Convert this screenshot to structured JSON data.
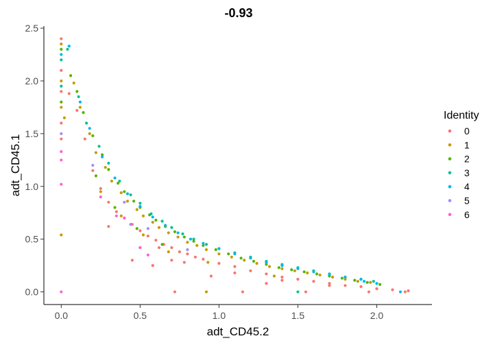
{
  "chart_data": {
    "type": "scatter",
    "title": "-0.93",
    "xlabel": "adt_CD45.2",
    "ylabel": "adt_CD45.1",
    "xlim": [
      -0.11,
      2.35
    ],
    "ylim": [
      -0.12,
      2.52
    ],
    "xticks": [
      0.0,
      0.5,
      1.0,
      1.5,
      2.0
    ],
    "xtick_labels": [
      "0.0",
      "0.5",
      "1.0",
      "1.5",
      "2.0"
    ],
    "yticks": [
      0.0,
      0.5,
      1.0,
      1.5,
      2.0,
      2.5
    ],
    "ytick_labels": [
      "0.0",
      "0.5",
      "1.0",
      "1.5",
      "2.0",
      "2.5"
    ],
    "grid": false,
    "legend": {
      "title": "Identity",
      "placement": "right",
      "entries": [
        {
          "label": "0",
          "color": "#F8766D"
        },
        {
          "label": "1",
          "color": "#C49A00"
        },
        {
          "label": "2",
          "color": "#53B400"
        },
        {
          "label": "3",
          "color": "#00C094"
        },
        {
          "label": "4",
          "color": "#00B6EB"
        },
        {
          "label": "5",
          "color": "#A58AFF"
        },
        {
          "label": "6",
          "color": "#FB61D7"
        }
      ]
    },
    "series": [
      {
        "name": "0",
        "x": [
          0,
          0,
          0,
          0,
          0,
          0.05,
          0.1,
          0.15,
          0.2,
          0.25,
          0.3,
          0.35,
          0.4,
          0.45,
          0.5,
          0.55,
          0.6,
          0.65,
          0.7,
          0.75,
          0.8,
          0.85,
          0.9,
          1.0,
          1.1,
          1.2,
          1.3,
          1.4,
          1.5,
          1.6,
          1.7,
          1.8,
          1.9,
          2.0,
          2.1,
          2.2,
          0.3,
          0.5,
          0.7,
          1.1,
          1.4,
          1.7,
          2.0,
          0.45,
          0.62,
          0.78,
          0.72,
          1.15,
          1.55,
          1.95,
          2.18,
          0.58,
          0.95,
          1.3
        ],
        "y": [
          2.4,
          2.1,
          1.9,
          1.6,
          1.45,
          1.88,
          1.72,
          1.45,
          1.15,
          0.98,
          0.85,
          0.76,
          0.7,
          0.64,
          0.58,
          0.53,
          0.49,
          0.45,
          0.42,
          0.38,
          0.36,
          0.33,
          0.31,
          0.27,
          0.24,
          0.2,
          0.17,
          0.14,
          0.12,
          0.1,
          0.08,
          0.06,
          0.05,
          0.03,
          0.02,
          0.01,
          0.62,
          0.42,
          0.3,
          0.18,
          0.11,
          0.06,
          0.03,
          0.3,
          0.42,
          0.28,
          0.0,
          0.0,
          0.0,
          0.0,
          0.0,
          0.25,
          0.15,
          0.08
        ]
      },
      {
        "name": "1",
        "x": [
          0,
          0,
          0,
          0.02,
          0.08,
          0.12,
          0.18,
          0.22,
          0.28,
          0.32,
          0.38,
          0.42,
          0.48,
          0.52,
          0.58,
          0.62,
          0.68,
          0.74,
          0.8,
          0.86,
          0.92,
          1.0,
          1.08,
          1.16,
          1.24,
          1.32,
          1.4,
          1.48,
          1.56,
          1.64,
          1.72,
          1.8,
          1.88,
          1.96,
          0.25,
          0.38,
          0.52,
          0.68,
          0.93,
          1.35,
          0.92,
          0.0
        ],
        "y": [
          2.35,
          2.0,
          1.75,
          1.65,
          1.98,
          1.75,
          1.5,
          1.32,
          1.18,
          1.05,
          0.94,
          0.86,
          0.78,
          0.72,
          0.66,
          0.61,
          0.56,
          0.52,
          0.47,
          0.44,
          0.4,
          0.36,
          0.33,
          0.3,
          0.27,
          0.24,
          0.22,
          0.2,
          0.18,
          0.16,
          0.14,
          0.12,
          0.1,
          0.09,
          0.95,
          0.72,
          0.54,
          0.38,
          0.28,
          0.15,
          0.0,
          0.54
        ]
      },
      {
        "name": "2",
        "x": [
          0,
          0,
          0.06,
          0.1,
          0.14,
          0.2,
          0.26,
          0.3,
          0.36,
          0.4,
          0.46,
          0.5,
          0.56,
          0.6,
          0.66,
          0.72,
          0.78,
          0.84,
          0.9,
          0.98,
          1.06,
          1.14,
          1.22,
          1.3,
          1.38,
          1.46,
          1.54,
          1.62,
          1.7,
          1.78,
          1.86,
          1.94,
          2.02,
          0.22,
          0.34,
          0.48,
          0.64
        ],
        "y": [
          2.3,
          1.8,
          2.05,
          1.9,
          1.7,
          1.48,
          1.3,
          1.16,
          1.03,
          0.95,
          0.86,
          0.8,
          0.73,
          0.68,
          0.62,
          0.57,
          0.52,
          0.48,
          0.44,
          0.4,
          0.36,
          0.32,
          0.29,
          0.26,
          0.23,
          0.21,
          0.19,
          0.17,
          0.15,
          0.13,
          0.11,
          0.09,
          0.07,
          1.1,
          0.8,
          0.6,
          0.45
        ]
      },
      {
        "name": "3",
        "x": [
          0,
          0,
          0.04,
          0.11,
          0.16,
          0.24,
          0.3,
          0.37,
          0.44,
          0.5,
          0.57,
          0.64,
          0.7,
          0.77,
          0.84,
          0.92,
          1.0,
          1.1,
          1.2,
          1.3,
          1.4,
          1.5,
          1.6,
          1.7,
          1.8,
          1.9,
          1.98,
          1.5
        ],
        "y": [
          2.2,
          1.95,
          2.3,
          1.85,
          1.6,
          1.38,
          1.22,
          1.05,
          0.92,
          0.84,
          0.74,
          0.67,
          0.61,
          0.55,
          0.5,
          0.45,
          0.41,
          0.37,
          0.33,
          0.29,
          0.26,
          0.23,
          0.2,
          0.17,
          0.14,
          0.12,
          0.1,
          0.0
        ]
      },
      {
        "name": "4",
        "x": [
          0,
          0.05,
          0.12,
          0.18,
          0.26,
          0.34,
          0.42,
          0.5,
          0.58,
          0.66,
          0.74,
          0.82,
          0.9,
          1.0,
          1.1,
          1.2,
          1.3,
          1.4,
          1.5,
          1.6,
          1.7,
          1.8,
          1.9,
          1.92,
          2.0,
          2.15
        ],
        "y": [
          2.25,
          2.33,
          1.8,
          1.55,
          1.28,
          1.08,
          0.93,
          0.81,
          0.71,
          0.63,
          0.56,
          0.5,
          0.46,
          0.41,
          0.36,
          0.32,
          0.28,
          0.25,
          0.22,
          0.19,
          0.16,
          0.14,
          0.12,
          0.1,
          0.08,
          0.0
        ]
      },
      {
        "name": "5",
        "x": [
          0,
          0.2,
          0.4,
          0.44,
          0.55,
          0.8
        ],
        "y": [
          1.5,
          1.2,
          0.85,
          0.64,
          0.6,
          0.4
        ]
      },
      {
        "name": "6",
        "x": [
          0,
          0,
          0,
          0.25,
          0.5,
          0.0,
          0.4,
          0.35,
          0.55
        ],
        "y": [
          1.25,
          1.02,
          0.0,
          0.9,
          0.42,
          1.33,
          0.7,
          0.72,
          0.35
        ]
      }
    ]
  }
}
